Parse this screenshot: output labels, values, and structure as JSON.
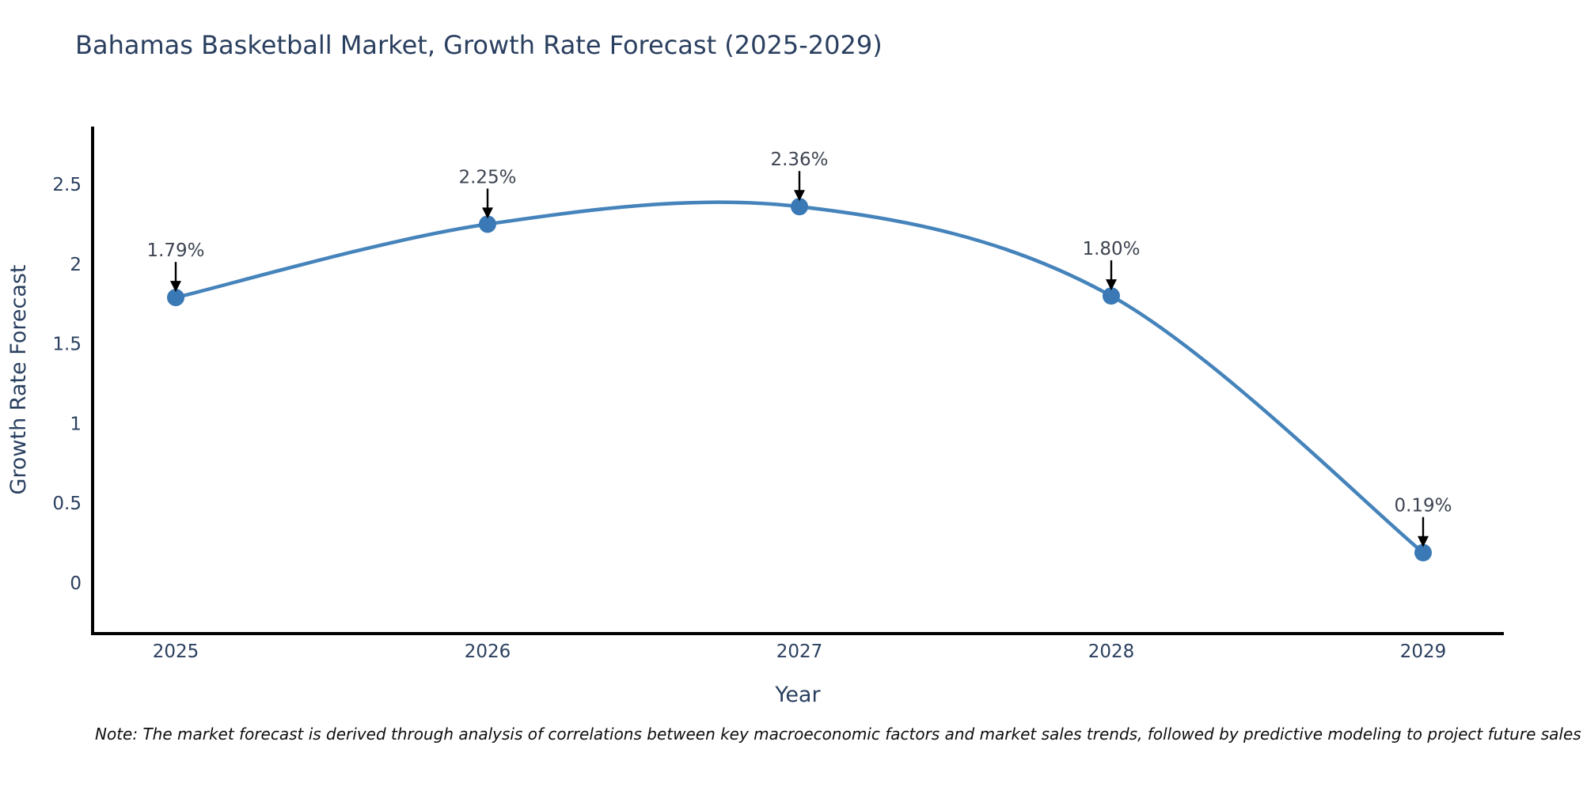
{
  "note": "Note: The market forecast is derived through analysis of correlations between key macroeconomic factors and market sales trends, followed by predictive modeling to project future sales",
  "colors": {
    "line": "#4583bb",
    "marker": "#3a79b5",
    "axis_line": "#000000",
    "title_text": "#2a3f5f",
    "tick_text": "#2a3f5f",
    "annotation_text": "#3d4451",
    "arrow": "#000000",
    "background": "#ffffff"
  },
  "chart_data": {
    "type": "line",
    "title": "Bahamas Basketball Market, Growth Rate Forecast (2025-2029)",
    "x": [
      "2025",
      "2026",
      "2027",
      "2028",
      "2029"
    ],
    "y": [
      1.79,
      2.25,
      2.36,
      1.8,
      0.19
    ],
    "point_labels": [
      "1.79%",
      "2.25%",
      "2.36%",
      "1.80%",
      "0.19%"
    ],
    "xlabel": "Year",
    "ylabel": "Growth Rate Forecast",
    "yticks": [
      0,
      0.5,
      1,
      1.5,
      2,
      2.5
    ],
    "ylim": [
      -0.32,
      2.86
    ],
    "line_shape": "spline",
    "grid": false,
    "legend": "none",
    "markers": true,
    "annotation_arrows": true
  }
}
